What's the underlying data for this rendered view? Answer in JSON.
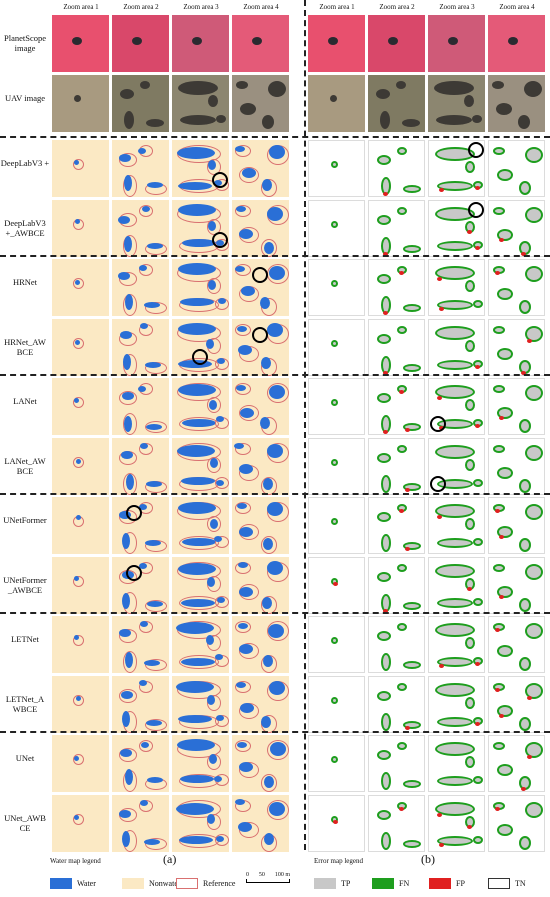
{
  "headers": [
    "Zoom area 1",
    "Zoom area 2",
    "Zoom area 3",
    "Zoom area 4"
  ],
  "rows": [
    {
      "label": "PlanetScope image",
      "kind": "planet"
    },
    {
      "label": "UAV image",
      "kind": "uav"
    },
    {
      "label": "DeepLabV3 +",
      "kind": "map"
    },
    {
      "label": "DeepLabV3 +_AWBCE",
      "kind": "map"
    },
    {
      "label": "HRNet",
      "kind": "map"
    },
    {
      "label": "HRNet_AW BCE",
      "kind": "map"
    },
    {
      "label": "LANet",
      "kind": "map"
    },
    {
      "label": "LANet_AW BCE",
      "kind": "map"
    },
    {
      "label": "UNetFormer",
      "kind": "map"
    },
    {
      "label": "UNetFormer _AWBCE",
      "kind": "map"
    },
    {
      "label": "LETNet",
      "kind": "map"
    },
    {
      "label": "LETNet_A WBCE",
      "kind": "map"
    },
    {
      "label": "UNet",
      "kind": "map"
    },
    {
      "label": "UNet_AWB CE",
      "kind": "map"
    }
  ],
  "panels": {
    "a": "(a)",
    "b": "(b)"
  },
  "water_legend": {
    "title": "Water map legend",
    "items": [
      {
        "label": "Water",
        "color": "#2a6fd6"
      },
      {
        "label": "Nonwater",
        "color": "#fbe9c4"
      },
      {
        "label": "Reference",
        "color": "#d97070"
      }
    ],
    "scale": {
      "ticks": [
        "0",
        "50",
        "100 m"
      ]
    }
  },
  "error_legend": {
    "title": "Error map legend",
    "items": [
      {
        "label": "TP",
        "color": "#c8c8c8"
      },
      {
        "label": "FN",
        "color": "#1e9e1e"
      },
      {
        "label": "FP",
        "color": "#e02020"
      },
      {
        "label": "TN",
        "color": "#ffffff"
      }
    ]
  }
}
